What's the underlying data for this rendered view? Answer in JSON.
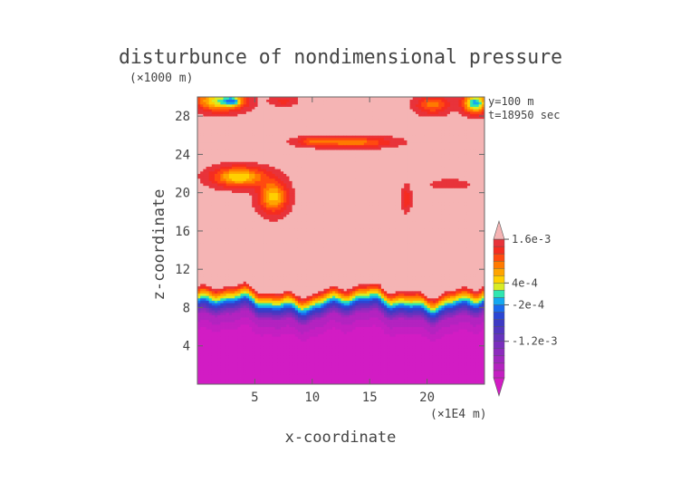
{
  "chart_data": {
    "type": "heatmap",
    "title": "disturbunce of nondimensional pressure",
    "xlabel": "x-coordinate",
    "ylabel": "z-coordinate",
    "x_unit": "(×1E4 m)",
    "y_unit": "(×1000 m)",
    "annotations": [
      "y=100  m",
      "t=18950 sec"
    ],
    "xlim": [
      0,
      25
    ],
    "ylim": [
      0,
      30
    ],
    "x_ticks": [
      5,
      10,
      15,
      20
    ],
    "y_ticks": [
      4,
      8,
      12,
      16,
      20,
      24,
      28
    ],
    "colorbar": {
      "min": -0.0024,
      "max": 0.0018,
      "tick_labels": [
        {
          "value": 0.0016,
          "label": "1.6e-3"
        },
        {
          "value": 0.0004,
          "label": "4e-4"
        },
        {
          "value": -0.0002,
          "label": "-2e-4"
        },
        {
          "value": -0.0012,
          "label": "-1.2e-3"
        }
      ],
      "levels": [
        {
          "lo": -0.0024,
          "hi": -0.0022,
          "color": "#d21cc4"
        },
        {
          "lo": -0.0022,
          "hi": -0.002,
          "color": "#c41fc2"
        },
        {
          "lo": -0.002,
          "hi": -0.0018,
          "color": "#b323c0"
        },
        {
          "lo": -0.0018,
          "hi": -0.0016,
          "color": "#a027be"
        },
        {
          "lo": -0.0016,
          "hi": -0.0014,
          "color": "#8c2bbd"
        },
        {
          "lo": -0.0014,
          "hi": -0.0012,
          "color": "#7a2fbd"
        },
        {
          "lo": -0.0012,
          "hi": -0.001,
          "color": "#6633be"
        },
        {
          "lo": -0.001,
          "hi": -0.0008,
          "color": "#5236c0"
        },
        {
          "lo": -0.0008,
          "hi": -0.0006,
          "color": "#3e3ac4"
        },
        {
          "lo": -0.0006,
          "hi": -0.0004,
          "color": "#2b46d4"
        },
        {
          "lo": -0.0004,
          "hi": -0.0002,
          "color": "#1a6aee"
        },
        {
          "lo": -0.0002,
          "hi": 0,
          "color": "#14a8f0"
        },
        {
          "lo": 0,
          "hi": 0.0002,
          "color": "#2fe6b0"
        },
        {
          "lo": 0.0002,
          "hi": 0.0004,
          "color": "#d8ec25"
        },
        {
          "lo": 0.0004,
          "hi": 0.0006,
          "color": "#ffd000"
        },
        {
          "lo": 0.0006,
          "hi": 0.0008,
          "color": "#ffa400"
        },
        {
          "lo": 0.0008,
          "hi": 0.001,
          "color": "#ff7a00"
        },
        {
          "lo": 0.001,
          "hi": 0.0012,
          "color": "#ff4a10"
        },
        {
          "lo": 0.0012,
          "hi": 0.0014,
          "color": "#f52c20"
        },
        {
          "lo": 0.0014,
          "hi": 0.0016,
          "color": "#e8333a"
        },
        {
          "lo": 0.0016,
          "hi": 0.0018,
          "color": "#f5b4b4"
        }
      ]
    },
    "regions": [
      {
        "name": "upper-field",
        "z_range": [
          9.6,
          30
        ],
        "value": 0.0017,
        "color": "#f8b8b8"
      },
      {
        "name": "transition-layer",
        "z_range": [
          7.3,
          9.6
        ],
        "value_range": [
          -0.0012,
          0.0016
        ]
      },
      {
        "name": "lower-field",
        "z_range": [
          0,
          7.3
        ],
        "value_range": [
          -0.0024,
          -0.0016
        ],
        "color": "#d21cc4"
      }
    ]
  }
}
